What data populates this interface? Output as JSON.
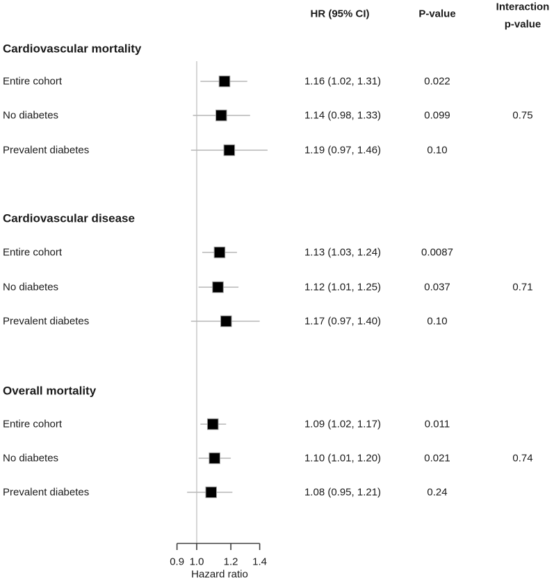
{
  "header": {
    "hr": "HR (95% CI)",
    "p": "P-value",
    "interaction_line1": "Interaction",
    "interaction_line2": "p-value"
  },
  "axis": {
    "label": "Hazard ratio",
    "tick_labels": [
      "0.9",
      "1.0",
      "1.2",
      "1.4"
    ]
  },
  "colors": {
    "marker": "#000000",
    "marker_outline": "#999999",
    "ci_line": "#b5b5b5",
    "reference_line": "#cccccc",
    "axis_line": "#3d3d3d",
    "text": "#1a1a1a"
  },
  "chart_data": {
    "type": "forest",
    "xlabel": "Hazard ratio",
    "x_scale": "log",
    "x_ticks": [
      0.9,
      1.0,
      1.2,
      1.4
    ],
    "reference_line": 1.0,
    "columns": [
      "HR (95% CI)",
      "P-value",
      "Interaction p-value"
    ],
    "sections": [
      {
        "title": "Cardiovascular mortality",
        "rows": [
          {
            "label": "Entire cohort",
            "hr": 1.16,
            "ci_low": 1.02,
            "ci_high": 1.31,
            "hr_ci_text": "1.16 (1.02, 1.31)",
            "p_value": "0.022",
            "interaction_p": ""
          },
          {
            "label": "No diabetes",
            "hr": 1.14,
            "ci_low": 0.98,
            "ci_high": 1.33,
            "hr_ci_text": "1.14 (0.98, 1.33)",
            "p_value": "0.099",
            "interaction_p": "0.75"
          },
          {
            "label": "Prevalent diabetes",
            "hr": 1.19,
            "ci_low": 0.97,
            "ci_high": 1.46,
            "hr_ci_text": "1.19 (0.97, 1.46)",
            "p_value": "0.10",
            "interaction_p": ""
          }
        ]
      },
      {
        "title": "Cardiovascular disease",
        "rows": [
          {
            "label": "Entire cohort",
            "hr": 1.13,
            "ci_low": 1.03,
            "ci_high": 1.24,
            "hr_ci_text": "1.13 (1.03, 1.24)",
            "p_value": "0.0087",
            "interaction_p": ""
          },
          {
            "label": "No diabetes",
            "hr": 1.12,
            "ci_low": 1.01,
            "ci_high": 1.25,
            "hr_ci_text": "1.12 (1.01, 1.25)",
            "p_value": "0.037",
            "interaction_p": "0.71"
          },
          {
            "label": "Prevalent diabetes",
            "hr": 1.17,
            "ci_low": 0.97,
            "ci_high": 1.4,
            "hr_ci_text": "1.17 (0.97, 1.40)",
            "p_value": "0.10",
            "interaction_p": ""
          }
        ]
      },
      {
        "title": "Overall mortality",
        "rows": [
          {
            "label": "Entire cohort",
            "hr": 1.09,
            "ci_low": 1.02,
            "ci_high": 1.17,
            "hr_ci_text": "1.09 (1.02, 1.17)",
            "p_value": "0.011",
            "interaction_p": ""
          },
          {
            "label": "No diabetes",
            "hr": 1.1,
            "ci_low": 1.01,
            "ci_high": 1.2,
            "hr_ci_text": "1.10 (1.01, 1.20)",
            "p_value": "0.021",
            "interaction_p": "0.74"
          },
          {
            "label": "Prevalent diabetes",
            "hr": 1.08,
            "ci_low": 0.95,
            "ci_high": 1.21,
            "hr_ci_text": "1.08 (0.95, 1.21)",
            "p_value": "0.24",
            "interaction_p": ""
          }
        ]
      }
    ]
  }
}
